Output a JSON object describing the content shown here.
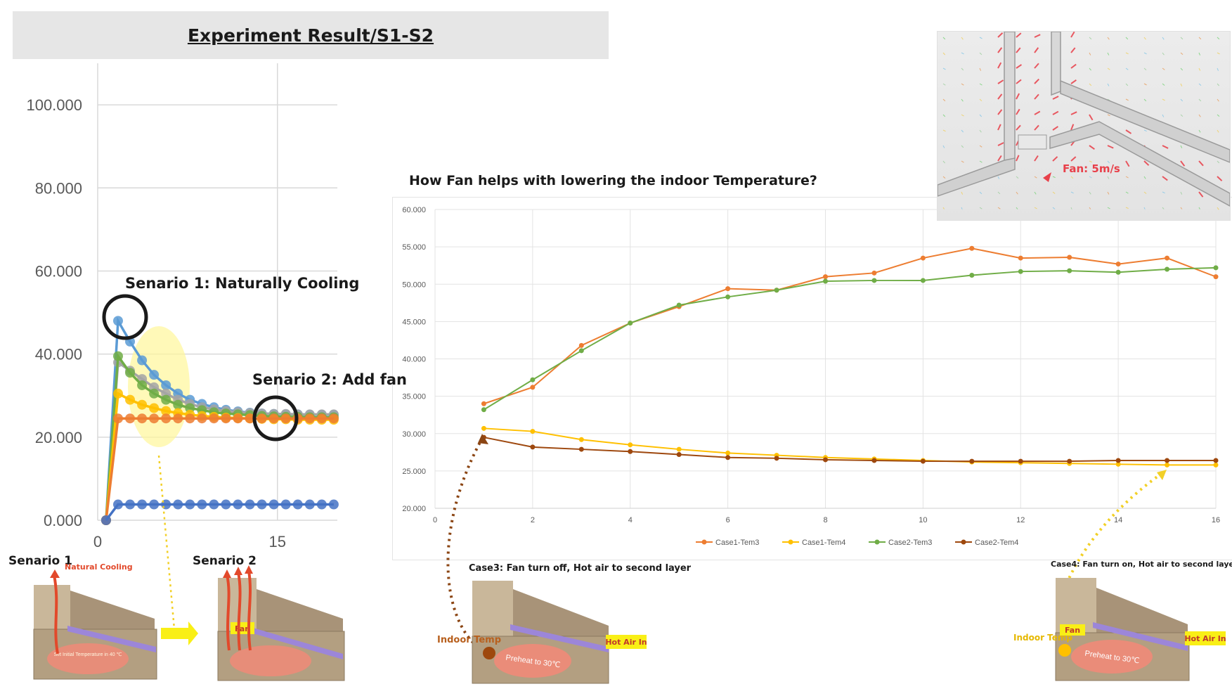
{
  "page": {
    "title": "Experiment Result/S1-S2",
    "right_question": "How Fan helps with lowering the indoor Temperature?"
  },
  "left_annotations": {
    "scenario1": "Senario 1: Naturally Cooling",
    "scenario2": "Senario 2: Add fan"
  },
  "diagrams": {
    "d1_title": "Senario 1",
    "d1_note": "Natural Cooling",
    "d1_inner": "Set Initial Temperature in 40 ℃",
    "d2_title": "Senario 2",
    "d2_fan": "Fan",
    "d3_title": "Case3: Fan turn off, Hot air to second layer",
    "d3_indoor": "Indoor Temp",
    "d3_hot": "Hot Air In",
    "d3_preheat": "Preheat to 30℃",
    "d4_title": "Case4: Fan turn on, Hot air to second layer",
    "d4_indoor": "Indoor Temp",
    "d4_fan": "Fan",
    "d4_hot": "Hot Air In",
    "d4_preheat": "Preheat to 30℃"
  },
  "sim_image": {
    "label": "Fan: 5m/s"
  },
  "colors": {
    "orange": "#ed7d31",
    "yellow": "#ffc000",
    "green": "#70ad47",
    "brown": "#9e480e",
    "blue": "#5b9bd5",
    "darkblue": "#4472c4",
    "grey": "#a5a5a5"
  },
  "chart_data": [
    {
      "type": "line",
      "title": "",
      "xlabel": "",
      "ylabel": "",
      "xlim": [
        0,
        20
      ],
      "ylim": [
        0,
        110
      ],
      "x_ticks": [
        "0",
        "15"
      ],
      "y_ticks": [
        "0.000",
        "20.000",
        "40.000",
        "60.000",
        "80.000",
        "100.000"
      ],
      "grid": true,
      "x": [
        1,
        2,
        3,
        4,
        5,
        6,
        7,
        8,
        9,
        10,
        11,
        12,
        13,
        14,
        15,
        16,
        17,
        18,
        19,
        20
      ],
      "series": [
        {
          "color": "#5b9bd5",
          "values": [
            0,
            48,
            43,
            38.5,
            35,
            32.5,
            30.5,
            29,
            28,
            27.2,
            26.6,
            26.2,
            25.9,
            25.7,
            25.6,
            25.5,
            25.5,
            25.4,
            25.4,
            25.4
          ]
        },
        {
          "color": "#a5a5a5",
          "values": [
            0,
            38,
            36,
            34,
            32,
            30.5,
            29,
            28,
            27.2,
            26.7,
            26.3,
            26.0,
            25.8,
            25.7,
            25.6,
            25.6,
            25.5,
            25.5,
            25.5,
            25.5
          ]
        },
        {
          "color": "#70ad47",
          "values": [
            0,
            39.5,
            35.5,
            32.5,
            30.5,
            29,
            27.8,
            27,
            26.5,
            26,
            25.7,
            25.5,
            25.3,
            25.1,
            25,
            24.9,
            24.9,
            24.8,
            24.8,
            24.8
          ]
        },
        {
          "color": "#ffc000",
          "values": [
            0,
            30.5,
            29,
            27.8,
            27,
            26.3,
            25.8,
            25.4,
            25.1,
            24.9,
            24.7,
            24.6,
            24.5,
            24.4,
            24.3,
            24.3,
            24.2,
            24.2,
            24.2,
            24.2
          ]
        },
        {
          "color": "#ed7d31",
          "values": [
            0,
            24.5,
            24.5,
            24.5,
            24.5,
            24.5,
            24.5,
            24.5,
            24.5,
            24.5,
            24.5,
            24.5,
            24.5,
            24.5,
            24.5,
            24.5,
            24.5,
            24.5,
            24.5,
            24.5
          ]
        },
        {
          "color": "#4472c4",
          "values": [
            0,
            3.8,
            3.8,
            3.8,
            3.8,
            3.8,
            3.8,
            3.8,
            3.8,
            3.8,
            3.8,
            3.8,
            3.8,
            3.8,
            3.8,
            3.8,
            3.8,
            3.8,
            3.8,
            3.8
          ]
        }
      ]
    },
    {
      "type": "line",
      "title": "How Fan helps with lowering the indoor Temperature?",
      "xlabel": "",
      "ylabel": "",
      "xlim": [
        0,
        16
      ],
      "ylim": [
        20,
        60
      ],
      "x_ticks": [
        "0",
        "2",
        "4",
        "6",
        "8",
        "10",
        "12",
        "14",
        "16"
      ],
      "y_ticks": [
        "20.000",
        "25.000",
        "30.000",
        "35.000",
        "40.000",
        "45.000",
        "50.000",
        "55.000",
        "60.000"
      ],
      "grid": true,
      "legend": "bottom",
      "x": [
        1,
        2,
        3,
        4,
        5,
        6,
        7,
        8,
        9,
        10,
        11,
        12,
        13,
        14,
        15,
        16
      ],
      "series": [
        {
          "name": "Case1-Tem3",
          "color": "#ed7d31",
          "values": [
            34,
            36.2,
            41.8,
            44.8,
            47,
            49.4,
            49.2,
            51,
            51.5,
            53.5,
            54.8,
            53.5,
            53.6,
            52.7,
            53.5,
            51
          ]
        },
        {
          "name": "Case1-Tem4",
          "color": "#ffc000",
          "values": [
            30.7,
            30.3,
            29.2,
            28.5,
            27.9,
            27.4,
            27.1,
            26.8,
            26.6,
            26.4,
            26.2,
            26.1,
            26.0,
            25.9,
            25.8,
            25.8
          ]
        },
        {
          "name": "Case2-Tem3",
          "color": "#70ad47",
          "values": [
            33.2,
            37.2,
            41.1,
            44.8,
            47.2,
            48.3,
            49.2,
            50.4,
            50.5,
            50.5,
            51.2,
            51.7,
            51.8,
            51.6,
            52,
            52.2
          ]
        },
        {
          "name": "Case2-Tem4",
          "color": "#9e480e",
          "values": [
            29.5,
            28.2,
            27.9,
            27.6,
            27.2,
            26.8,
            26.7,
            26.5,
            26.4,
            26.3,
            26.3,
            26.3,
            26.3,
            26.4,
            26.4,
            26.4
          ]
        }
      ]
    }
  ]
}
